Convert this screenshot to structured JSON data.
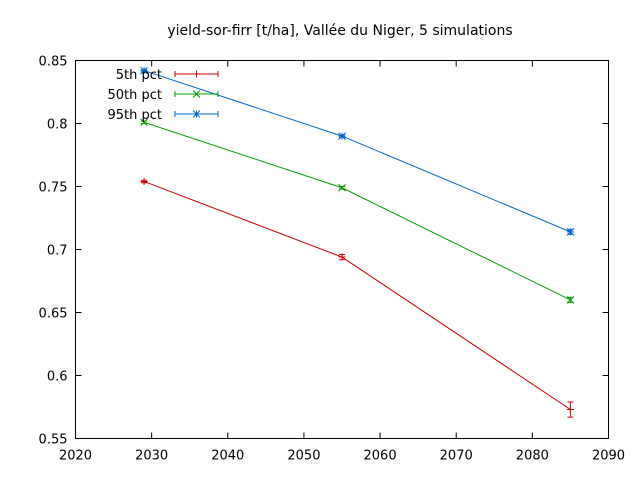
{
  "chart_data": {
    "type": "line",
    "title": "yield-sor-firr [t/ha], Vallée du Niger, 5 simulations",
    "xlabel": "",
    "ylabel": "",
    "xlim": [
      2020,
      2090
    ],
    "ylim": [
      0.55,
      0.85
    ],
    "xticks": [
      2020,
      2030,
      2040,
      2050,
      2060,
      2070,
      2080,
      2090
    ],
    "yticks": [
      0.55,
      0.6,
      0.65,
      0.7,
      0.75,
      0.8,
      0.85
    ],
    "x": [
      2029,
      2055,
      2085
    ],
    "grid": false,
    "legend": "top-left",
    "series": [
      {
        "name": "5th pct",
        "color": "#cc0000",
        "marker": "plus",
        "values": [
          0.754,
          0.694,
          0.573
        ],
        "errors": [
          0.001,
          0.002,
          0.006
        ]
      },
      {
        "name": "50th pct",
        "color": "#00a000",
        "marker": "cross",
        "values": [
          0.801,
          0.749,
          0.66
        ],
        "errors": [
          0.001,
          0.001,
          0.002
        ]
      },
      {
        "name": "95th pct",
        "color": "#0066cc",
        "marker": "star",
        "values": [
          0.842,
          0.79,
          0.714
        ],
        "errors": [
          0.001,
          0.001,
          0.002
        ]
      }
    ]
  }
}
